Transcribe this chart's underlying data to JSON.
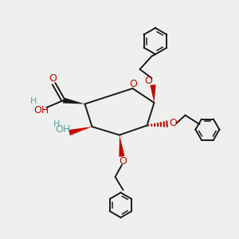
{
  "bg_color": "#eef0ee",
  "bond_color": "#1a1a1a",
  "red_color": "#cc0000",
  "teal_color": "#5f9ea0",
  "figsize": [
    3.0,
    3.0
  ],
  "dpi": 100,
  "xlim": [
    0,
    10
  ],
  "ylim": [
    0,
    10
  ]
}
